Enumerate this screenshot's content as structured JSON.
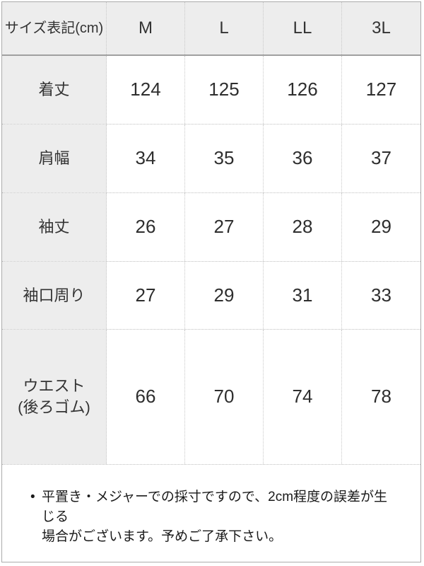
{
  "table": {
    "header": [
      "サイズ表記(cm)",
      "M",
      "L",
      "LL",
      "3L"
    ],
    "rows": [
      {
        "label": "着丈",
        "values": [
          "124",
          "125",
          "126",
          "127"
        ]
      },
      {
        "label": "肩幅",
        "values": [
          "34",
          "35",
          "36",
          "37"
        ]
      },
      {
        "label": "袖丈",
        "values": [
          "26",
          "27",
          "28",
          "29"
        ]
      },
      {
        "label": "袖口周り",
        "values": [
          "27",
          "29",
          "31",
          "33"
        ]
      },
      {
        "label": "ウエスト\n(後ろゴム)",
        "values": [
          "66",
          "70",
          "74",
          "78"
        ]
      }
    ]
  },
  "note": {
    "bullet": "•",
    "text": "平置き・メジャーでの採寸ですので、2cm程度の誤差が生じる\n場合がございます。予めご了承下さい。"
  },
  "colors": {
    "label_bg": "#ededed",
    "outer_border": "#ababab",
    "header_underline": "#a0a0a0",
    "dotted_border": "#c8c8c8",
    "text": "#333333"
  },
  "chart_data": {
    "type": "table",
    "columns": [
      "サイズ表記(cm)",
      "M",
      "L",
      "LL",
      "3L"
    ],
    "rows": [
      [
        "着丈",
        124,
        125,
        126,
        127
      ],
      [
        "肩幅",
        34,
        35,
        36,
        37
      ],
      [
        "袖丈",
        26,
        27,
        28,
        29
      ],
      [
        "袖口周り",
        27,
        29,
        31,
        33
      ],
      [
        "ウエスト(後ろゴム)",
        66,
        70,
        74,
        78
      ]
    ],
    "unit": "cm",
    "note": "平置き・メジャーでの採寸ですので、2cm程度の誤差が生じる場合がございます。予めご了承下さい。"
  }
}
